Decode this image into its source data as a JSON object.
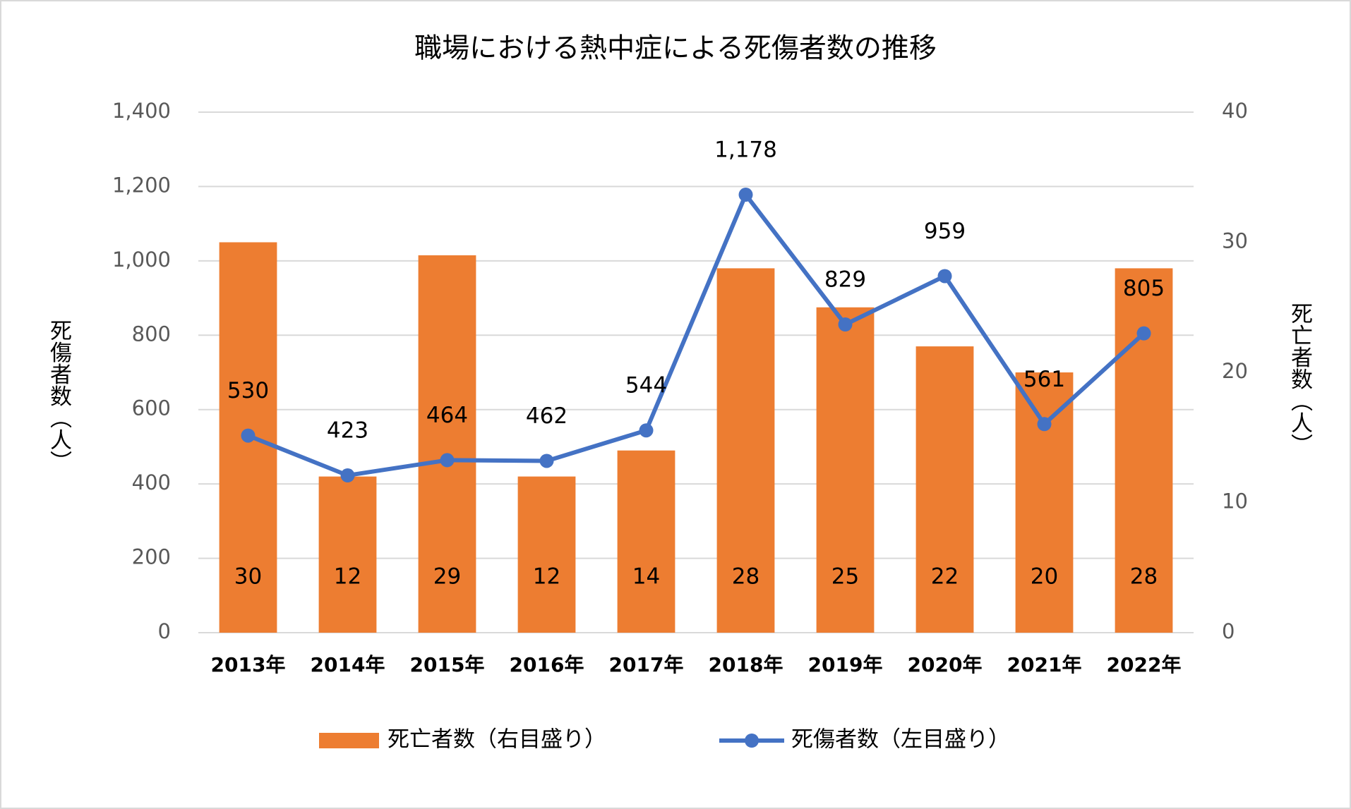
{
  "chart_data": {
    "type": "combo",
    "title": "職場における熱中症による死傷者数の推移",
    "categories": [
      "2013年",
      "2014年",
      "2015年",
      "2016年",
      "2017年",
      "2018年",
      "2019年",
      "2020年",
      "2021年",
      "2022年"
    ],
    "series": [
      {
        "name": "死亡者数（右目盛り）",
        "type": "bar",
        "axis": "y2",
        "color": "#ED7D31",
        "values": [
          30,
          12,
          29,
          12,
          14,
          28,
          25,
          22,
          20,
          28
        ]
      },
      {
        "name": "死傷者数（左目盛り）",
        "type": "line",
        "axis": "y",
        "color": "#4472C4",
        "values": [
          530,
          423,
          464,
          462,
          544,
          1178,
          829,
          959,
          561,
          805
        ],
        "value_labels": [
          "530",
          "423",
          "464",
          "462",
          "544",
          "1,178",
          "829",
          "959",
          "561",
          "805"
        ]
      }
    ],
    "ylabel": "死傷者数（人）",
    "y2label": "死亡者数（人）",
    "ylim": [
      0,
      1400
    ],
    "yticks": [
      0,
      200,
      400,
      600,
      800,
      {
        "value": 1000,
        "label": "1,000"
      },
      {
        "value": 1200,
        "label": "1,200"
      },
      {
        "value": 1400,
        "label": "1,400"
      }
    ],
    "y2lim": [
      0,
      40
    ],
    "y2ticks": [
      0,
      10,
      20,
      30,
      40
    ],
    "grid": true,
    "legend": "bottom"
  }
}
